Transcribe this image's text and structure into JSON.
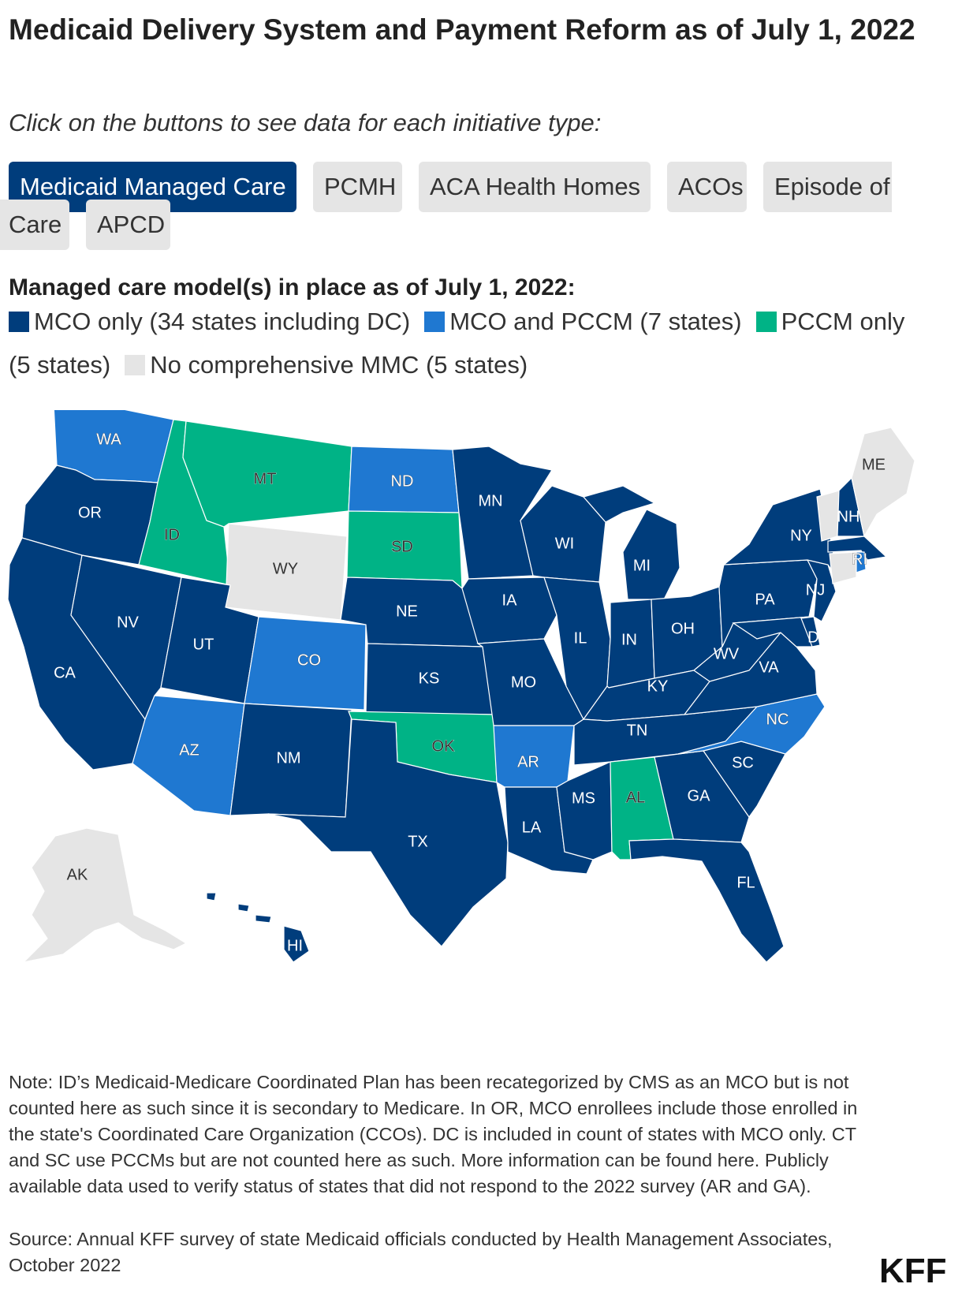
{
  "title": "Medicaid Delivery System and Payment Reform as of July 1, 2022",
  "subtitle": "Click on the buttons to see data for each initiative type:",
  "buttons": [
    {
      "label": "Medicaid Managed Care",
      "active": true
    },
    {
      "label": "PCMH",
      "active": false
    },
    {
      "label": "ACA Health Homes",
      "active": false
    },
    {
      "label": "ACOs",
      "active": false
    },
    {
      "label": "Episode of Care",
      "part1": "Episode of",
      "part2": "Care",
      "active": false
    },
    {
      "label": "APCD",
      "active": false
    }
  ],
  "legend": {
    "title": "Managed care model(s) in place as of July 1, 2022:",
    "items": [
      {
        "key": "mco",
        "label": "MCO only (34 states including DC)",
        "color": "#003d7c"
      },
      {
        "key": "both",
        "label": "MCO and PCCM (7 states)",
        "color": "#1f78d1"
      },
      {
        "key": "pccm",
        "label": "PCCM only",
        "label_cont": "(5 states)",
        "color": "#00b386"
      },
      {
        "key": "none",
        "label": "No comprehensive MMC (5 states)",
        "color": "#e5e5e5"
      }
    ]
  },
  "map_data": {
    "type": "choropleth",
    "states": {
      "WA": "both",
      "OR": "mco",
      "CA": "mco",
      "ID": "pccm",
      "NV": "mco",
      "MT": "pccm",
      "WY": "none",
      "UT": "mco",
      "AZ": "both",
      "CO": "both",
      "NM": "mco",
      "ND": "both",
      "SD": "pccm",
      "NE": "mco",
      "KS": "mco",
      "OK": "pccm",
      "TX": "mco",
      "MN": "mco",
      "IA": "mco",
      "MO": "mco",
      "AR": "both",
      "LA": "mco",
      "WI": "mco",
      "IL": "mco",
      "MS": "mco",
      "MI": "mco",
      "IN": "mco",
      "KY": "mco",
      "TN": "mco",
      "AL": "pccm",
      "OH": "mco",
      "GA": "mco",
      "FL": "mco",
      "SC": "mco",
      "NC": "both",
      "VA": "mco",
      "WV": "mco",
      "PA": "mco",
      "NY": "mco",
      "NJ": "mco",
      "DE": "mco",
      "MD": "mco",
      "DC": "mco",
      "CT": "none",
      "RI": "both",
      "MA": "mco",
      "VT": "none",
      "NH": "mco",
      "ME": "none",
      "AK": "none",
      "HI": "mco"
    }
  },
  "note": "Note: ID’s Medicaid-Medicare Coordinated Plan has been recategorized by CMS as an MCO but is not counted here as such since it is secondary to Medicare. In OR, MCO enrollees include those enrolled in the state's Coordinated Care Organization (CCOs). DC is included in count of states with MCO only. CT and SC use PCCMs but are not counted here as such. More information can be found here. Publicly available data used to verify status of states that did not respond to the 2022 survey (AR and GA).",
  "source": "Source: Annual KFF survey of state Medicaid officials conducted by Health Management Associates, October 2022",
  "logo": "KFF"
}
